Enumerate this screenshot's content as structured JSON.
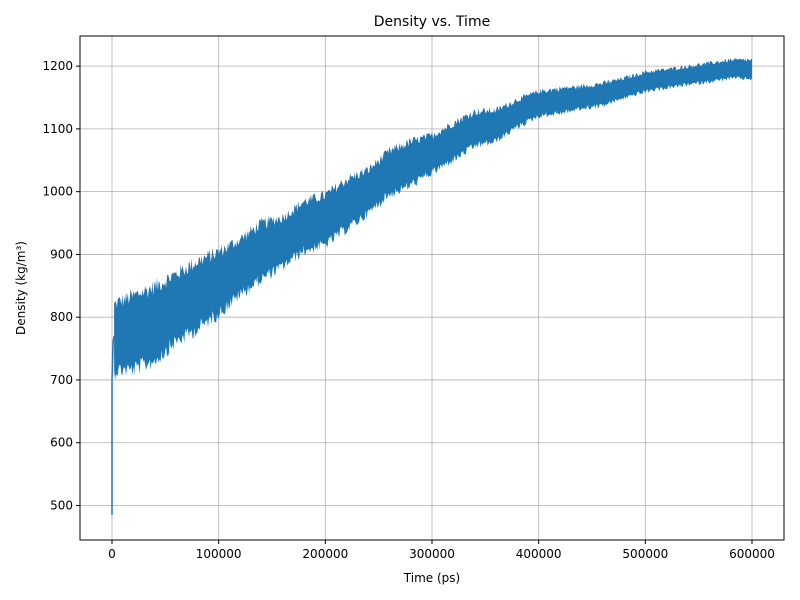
{
  "chart_data": {
    "type": "line",
    "title": "Density vs. Time",
    "xlabel": "Time (ps)",
    "ylabel": "Density (kg/m³)",
    "xlim": [
      -30000,
      630000
    ],
    "ylim": [
      445,
      1248
    ],
    "xticks": [
      0,
      100000,
      200000,
      300000,
      400000,
      500000,
      600000
    ],
    "xtick_labels": [
      "0",
      "100000",
      "200000",
      "300000",
      "400000",
      "500000",
      "600000"
    ],
    "yticks": [
      500,
      600,
      700,
      800,
      900,
      1000,
      1100,
      1200
    ],
    "ytick_labels": [
      "500",
      "600",
      "700",
      "800",
      "900",
      "1000",
      "1100",
      "1200"
    ],
    "grid": true,
    "color": "#1f77b4",
    "series": [
      {
        "x": [
          0,
          500,
          1000,
          2000,
          5000,
          20000,
          40000,
          60000,
          80000,
          100000,
          120000,
          140000,
          160000,
          180000,
          200000,
          220000,
          240000,
          260000,
          280000,
          300000,
          320000,
          340000,
          360000,
          380000,
          400000,
          420000,
          440000,
          460000,
          480000,
          500000,
          520000,
          540000,
          560000,
          580000,
          600000
        ],
        "y": [
          485,
          600,
          720,
          765,
          770,
          775,
          790,
          815,
          835,
          855,
          880,
          905,
          920,
          945,
          955,
          980,
          1000,
          1030,
          1045,
          1060,
          1080,
          1100,
          1105,
          1125,
          1140,
          1145,
          1150,
          1155,
          1165,
          1175,
          1180,
          1185,
          1190,
          1195,
          1195
        ],
        "spread": [
          0,
          40,
          55,
          55,
          55,
          60,
          60,
          55,
          55,
          50,
          45,
          45,
          40,
          40,
          40,
          40,
          35,
          35,
          35,
          30,
          30,
          28,
          25,
          22,
          20,
          20,
          18,
          18,
          16,
          16,
          15,
          15,
          15,
          15,
          15
        ]
      }
    ]
  }
}
